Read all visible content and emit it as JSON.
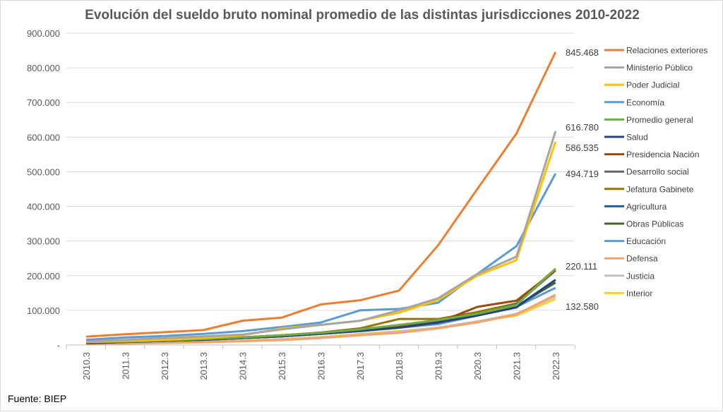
{
  "chart_data": {
    "type": "line",
    "title": "Evolución del sueldo bruto nominal promedio de las distintas jurisdicciones 2010-2022",
    "source": "Fuente: BIEP",
    "xlabel": "",
    "ylabel": "",
    "categories": [
      "2010.3",
      "2011.3",
      "2012.3",
      "2013.3",
      "2014.3",
      "2015.3",
      "2016.3",
      "2017.3",
      "2018.3",
      "2019.3",
      "2020.3",
      "2021.3",
      "2022.3"
    ],
    "ylim": [
      0,
      900000
    ],
    "yticks": [
      0,
      100000,
      200000,
      300000,
      400000,
      500000,
      600000,
      700000,
      800000,
      900000
    ],
    "ytick_labels": [
      "-",
      "100.000",
      "200.000",
      "300.000",
      "400.000",
      "500.000",
      "600.000",
      "700.000",
      "800.000",
      "900.000"
    ],
    "grid": true,
    "legend_position": "right",
    "data_labels": [
      "845.468",
      "616.780",
      "586.535",
      "494.719",
      "220.111",
      "132.580"
    ],
    "series": [
      {
        "name": "Relaciones exteriores",
        "color": "#ED7D31",
        "values": [
          24000,
          31000,
          37000,
          43000,
          70000,
          79000,
          117000,
          129000,
          157000,
          288000,
          450000,
          610000,
          845468
        ]
      },
      {
        "name": "Ministerio Público",
        "color": "#A5A5A5",
        "values": [
          10000,
          15000,
          20000,
          25000,
          30000,
          45000,
          58000,
          70000,
          100000,
          135000,
          205000,
          255000,
          616780
        ]
      },
      {
        "name": "Poder Judicial",
        "color": "#FFC000",
        "values": [
          8000,
          12000,
          15000,
          20000,
          28000,
          48000,
          58000,
          70000,
          93000,
          130000,
          200000,
          245000,
          586535
        ]
      },
      {
        "name": "Economía",
        "color": "#5B9BD5",
        "values": [
          15000,
          22000,
          26000,
          32000,
          40000,
          52000,
          65000,
          100000,
          104000,
          122000,
          205000,
          285000,
          494719
        ]
      },
      {
        "name": "Promedio general",
        "color": "#70AD47",
        "values": [
          8000,
          10000,
          13000,
          17000,
          22000,
          28000,
          35000,
          45000,
          58000,
          72000,
          90000,
          115000,
          220111
        ]
      },
      {
        "name": "Salud",
        "color": "#264478",
        "values": [
          5000,
          9000,
          12000,
          15000,
          20000,
          25000,
          33000,
          42000,
          50000,
          65000,
          85000,
          110000,
          188000
        ]
      },
      {
        "name": "Presidencia Nación",
        "color": "#9E480E",
        "values": [
          6000,
          10000,
          13000,
          17000,
          22000,
          28000,
          35000,
          45000,
          52000,
          65000,
          110000,
          128000,
          215000
        ]
      },
      {
        "name": "Desarrollo social",
        "color": "#636363",
        "values": [
          6000,
          10000,
          13000,
          17000,
          22000,
          28000,
          35000,
          45000,
          55000,
          70000,
          88000,
          118000,
          215000
        ]
      },
      {
        "name": "Jefatura Gabinete",
        "color": "#997300",
        "values": [
          6000,
          10000,
          13000,
          17000,
          22000,
          28000,
          36000,
          48000,
          75000,
          75000,
          95000,
          120000,
          220000
        ]
      },
      {
        "name": "Agricultura",
        "color": "#255E91",
        "values": [
          5000,
          9000,
          12000,
          15000,
          20000,
          25000,
          32000,
          40000,
          50000,
          65000,
          85000,
          108000,
          188000
        ]
      },
      {
        "name": "Obras Públicas",
        "color": "#43682B",
        "values": [
          5000,
          9000,
          12000,
          15000,
          20000,
          25000,
          32000,
          40000,
          52000,
          68000,
          88000,
          112000,
          180000
        ]
      },
      {
        "name": "Educación",
        "color": "#5B9BD5",
        "values": [
          6000,
          9000,
          12000,
          15000,
          20000,
          25000,
          32000,
          40000,
          50000,
          60000,
          85000,
          110000,
          165000
        ]
      },
      {
        "name": "Defensa",
        "color": "#F4A469",
        "values": [
          2000,
          4000,
          6000,
          8000,
          11000,
          14000,
          20000,
          28000,
          35000,
          48000,
          65000,
          88000,
          145000
        ]
      },
      {
        "name": "Justicia",
        "color": "#BFBFBF",
        "values": [
          3000,
          5000,
          7000,
          9000,
          12000,
          16000,
          22000,
          30000,
          38000,
          50000,
          68000,
          90000,
          140000
        ]
      },
      {
        "name": "Interior",
        "color": "#FFCD33",
        "values": [
          4000,
          6000,
          8000,
          10000,
          13000,
          17000,
          23000,
          32000,
          40000,
          50000,
          68000,
          85000,
          132580
        ]
      }
    ]
  }
}
